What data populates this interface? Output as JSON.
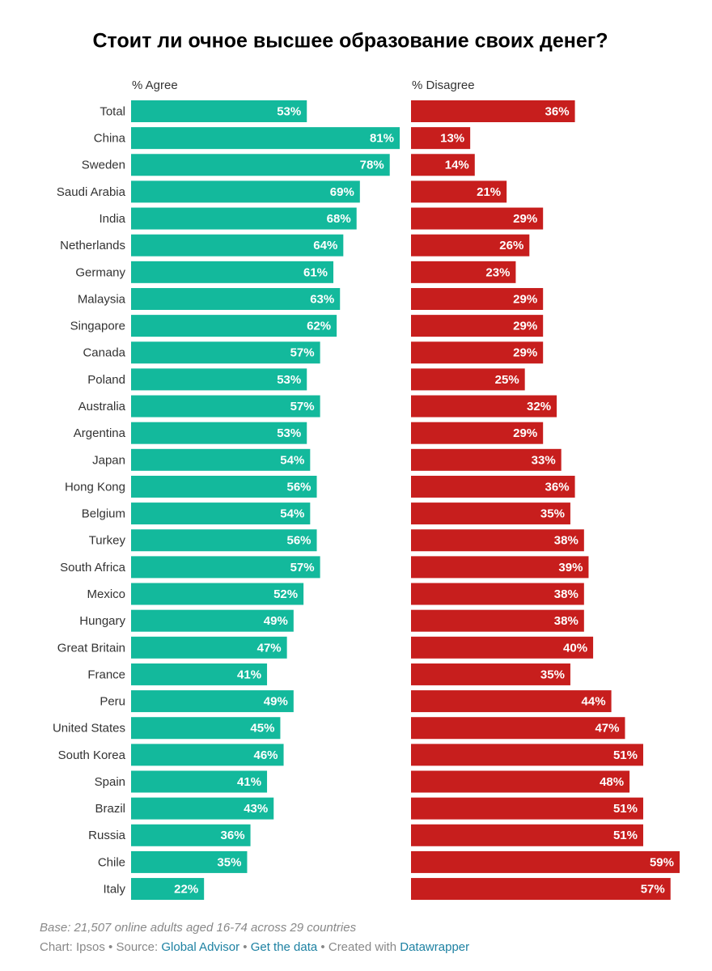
{
  "chart_data": {
    "type": "bar",
    "title": "Стоит ли очное высшее образование своих денег?",
    "categories": [
      "Total",
      "China",
      "Sweden",
      "Saudi Arabia",
      "India",
      "Netherlands",
      "Germany",
      "Malaysia",
      "Singapore",
      "Canada",
      "Poland",
      "Australia",
      "Argentina",
      "Japan",
      "Hong Kong",
      "Belgium",
      "Turkey",
      "South Africa",
      "Mexico",
      "Hungary",
      "Great Britain",
      "France",
      "Peru",
      "United States",
      "South Korea",
      "Spain",
      "Brazil",
      "Russia",
      "Chile",
      "Italy"
    ],
    "series": [
      {
        "name": "% Agree",
        "color": "#13b99c",
        "values": [
          53,
          81,
          78,
          69,
          68,
          64,
          61,
          63,
          62,
          57,
          53,
          57,
          53,
          54,
          56,
          54,
          56,
          57,
          52,
          49,
          47,
          41,
          49,
          45,
          46,
          41,
          43,
          36,
          35,
          22
        ],
        "value_labels": [
          "53%",
          "81%",
          "78%",
          "69%",
          "68%",
          "64%",
          "61%",
          "63%",
          "62%",
          "57%",
          "53%",
          "57%",
          "53%",
          "54%",
          "56%",
          "54%",
          "56%",
          "57%",
          "52%",
          "49%",
          "47%",
          "41%",
          "49%",
          "45%",
          "46%",
          "41%",
          "43%",
          "36%",
          "35%",
          "22%"
        ]
      },
      {
        "name": "% Disagree",
        "color": "#c71e1d",
        "values": [
          36,
          13,
          14,
          21,
          29,
          26,
          23,
          29,
          29,
          29,
          25,
          32,
          29,
          33,
          36,
          35,
          38,
          39,
          38,
          38,
          40,
          35,
          44,
          47,
          51,
          48,
          51,
          51,
          59,
          57
        ],
        "value_labels": [
          "36%",
          "13%",
          "14%",
          "21%",
          "29%",
          "26%",
          "23%",
          "29%",
          "29%",
          "29%",
          "25%",
          "32%",
          "29%",
          "33%",
          "36%",
          "35%",
          "38%",
          "39%",
          "38%",
          "38%",
          "40%",
          "35%",
          "44%",
          "47%",
          "51%",
          "48%",
          "51%",
          "51%",
          "59%",
          "57%"
        ]
      }
    ]
  },
  "footer": {
    "note": "Base: 21,507 online adults aged 16-74 across 29 countries",
    "byline": "Chart: Ipsos",
    "separator": "•",
    "source_label": "Source:",
    "source_link": "Global Advisor",
    "data_link": "Get the data",
    "created_label": "Created with",
    "tool_link": "Datawrapper"
  }
}
